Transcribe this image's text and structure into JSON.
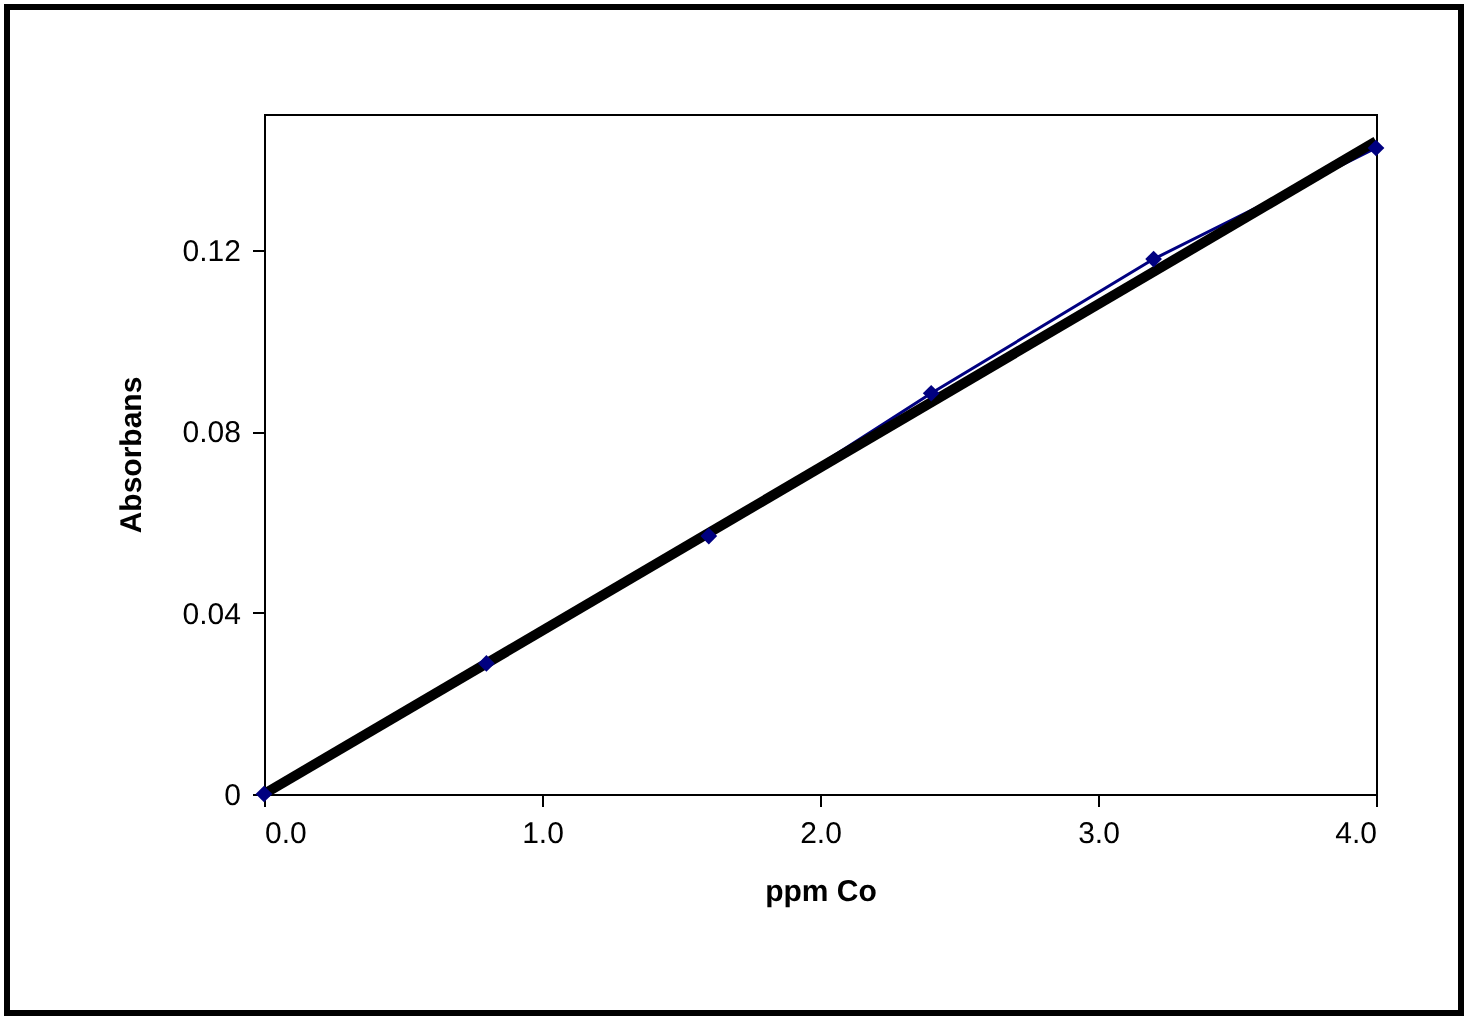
{
  "chart_data": {
    "type": "line",
    "xlabel": "ppm  Co",
    "ylabel": "Absorbans",
    "xlim": [
      0,
      4
    ],
    "xticks": [
      {
        "value": 0,
        "label": "0.0"
      },
      {
        "value": 1,
        "label": "1.0"
      },
      {
        "value": 2,
        "label": "2.0"
      },
      {
        "value": 3,
        "label": "3.0"
      },
      {
        "value": 4,
        "label": "4.0"
      }
    ],
    "ylim": [
      0,
      0.15
    ],
    "yticks": [
      0,
      0.04,
      0.08,
      0.12
    ],
    "grid": false,
    "series": [
      {
        "color": "#000080",
        "marker": "diamond",
        "x": [
          0,
          0.8,
          1.6,
          2.4,
          3.2,
          4.0
        ],
        "values": [
          0,
          0.0288,
          0.0569,
          0.0884,
          0.118,
          0.1425
        ]
      },
      {
        "color": "#000000",
        "marker": "none",
        "x": [
          0,
          4.0
        ],
        "values": [
          0,
          0.144
        ]
      }
    ]
  }
}
